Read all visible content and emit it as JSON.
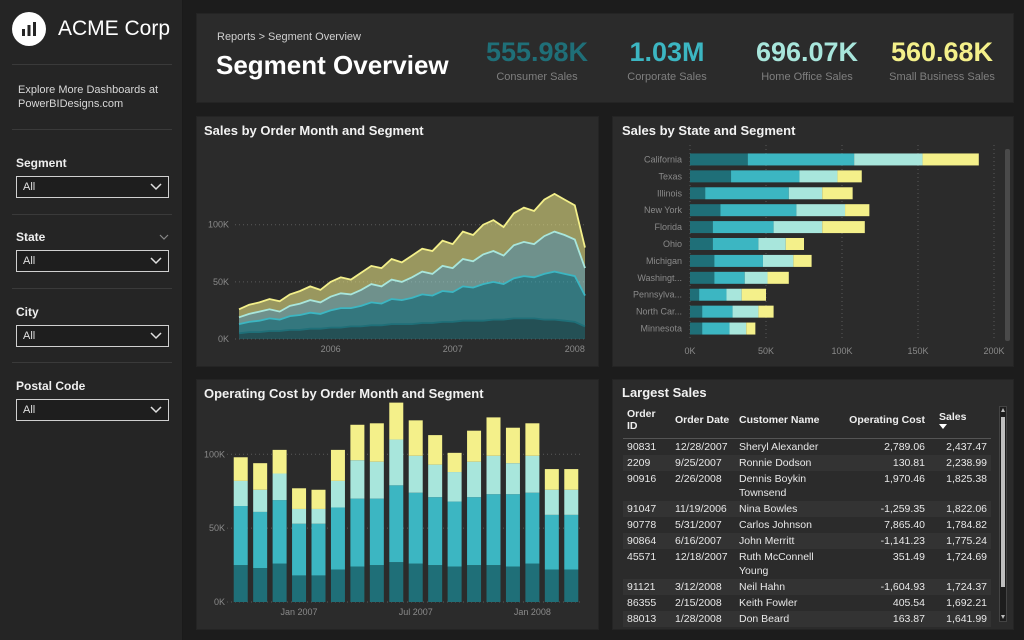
{
  "app": {
    "name": "ACME Corp",
    "explore_text": "Explore More Dashboards at PowerBIDesigns.com"
  },
  "slicers": [
    {
      "label": "Segment",
      "value": "All"
    },
    {
      "label": "State",
      "value": "All"
    },
    {
      "label": "City",
      "value": "All"
    },
    {
      "label": "Postal Code",
      "value": "All"
    }
  ],
  "header": {
    "breadcrumb": "Reports > Segment Overview",
    "title": "Segment Overview"
  },
  "kpis": [
    {
      "value": "555.98K",
      "label": "Consumer Sales",
      "color": "#1f6f78"
    },
    {
      "value": "1.03M",
      "label": "Corporate Sales",
      "color": "#3cb6c2"
    },
    {
      "value": "696.07K",
      "label": "Home Office Sales",
      "color": "#a8e6dc"
    },
    {
      "value": "560.68K",
      "label": "Small Business Sales",
      "color": "#f4f08a"
    }
  ],
  "colors": {
    "consumer": "#1f6f78",
    "corporate": "#3cb6c2",
    "home_office": "#a8e6dc",
    "small_business": "#f4f08a"
  },
  "chart_data": [
    {
      "type": "area",
      "title": "Sales by Order Month and Segment",
      "stacked": true,
      "ylim": [
        0,
        175
      ],
      "yticks": [
        "0K",
        "50K",
        "100K"
      ],
      "ytick_values": [
        0,
        50,
        100
      ],
      "xticks": [
        "2006",
        "2007",
        "2008"
      ],
      "xtick_positions": [
        9,
        21,
        33
      ],
      "series": [
        {
          "name": "Consumer",
          "values": [
            5,
            6,
            6,
            7,
            7,
            8,
            8,
            9,
            9,
            10,
            10,
            11,
            11,
            12,
            12,
            13,
            13,
            13,
            14,
            14,
            15,
            15,
            16,
            16,
            16,
            17,
            17,
            18,
            18,
            18,
            17,
            17,
            16,
            15,
            11
          ]
        },
        {
          "name": "Corporate",
          "values": [
            8,
            9,
            10,
            11,
            10,
            12,
            13,
            14,
            13,
            15,
            17,
            16,
            18,
            20,
            19,
            22,
            21,
            23,
            25,
            24,
            27,
            26,
            30,
            29,
            32,
            33,
            31,
            35,
            37,
            36,
            40,
            42,
            41,
            40,
            27
          ]
        },
        {
          "name": "Home Office",
          "values": [
            6,
            7,
            8,
            8,
            7,
            9,
            10,
            11,
            10,
            12,
            13,
            12,
            14,
            16,
            15,
            17,
            16,
            18,
            20,
            19,
            22,
            21,
            24,
            23,
            26,
            27,
            25,
            29,
            30,
            29,
            33,
            35,
            34,
            32,
            24
          ]
        },
        {
          "name": "Small Business",
          "values": [
            7,
            8,
            8,
            9,
            9,
            10,
            11,
            12,
            11,
            13,
            14,
            13,
            15,
            16,
            16,
            18,
            17,
            19,
            20,
            20,
            22,
            21,
            24,
            23,
            26,
            27,
            25,
            28,
            30,
            29,
            32,
            33,
            31,
            30,
            18
          ]
        }
      ]
    },
    {
      "type": "bar",
      "orientation": "horizontal",
      "stacked": true,
      "title": "Sales by State and Segment",
      "categories": [
        "California",
        "Texas",
        "Illinois",
        "New York",
        "Florida",
        "Ohio",
        "Michigan",
        "Washingt...",
        "Pennsylva...",
        "North Car...",
        "Minnesota"
      ],
      "xlim": [
        0,
        200
      ],
      "xticks": [
        "0K",
        "50K",
        "100K",
        "150K",
        "200K"
      ],
      "xtick_values": [
        0,
        50,
        100,
        150,
        200
      ],
      "series": [
        {
          "name": "Consumer",
          "values": [
            38,
            27,
            10,
            20,
            15,
            15,
            16,
            16,
            6,
            8,
            8
          ]
        },
        {
          "name": "Corporate",
          "values": [
            70,
            45,
            55,
            50,
            40,
            30,
            32,
            20,
            18,
            20,
            18
          ]
        },
        {
          "name": "Home Office",
          "values": [
            45,
            25,
            22,
            32,
            32,
            18,
            20,
            15,
            10,
            17,
            11
          ]
        },
        {
          "name": "Small Business",
          "values": [
            37,
            16,
            20,
            16,
            28,
            12,
            12,
            14,
            16,
            10,
            6
          ]
        }
      ]
    },
    {
      "type": "bar",
      "stacked": true,
      "title": "Operating Cost by Order Month and Segment",
      "ylim": [
        0,
        130
      ],
      "yticks": [
        "0K",
        "50K",
        "100K"
      ],
      "ytick_values": [
        0,
        50,
        100
      ],
      "xticks": [
        "Jan 2007",
        "Jul 2007",
        "Jan 2008"
      ],
      "xtick_positions": [
        3,
        9,
        15
      ],
      "series": [
        {
          "name": "Consumer",
          "values": [
            25,
            23,
            26,
            18,
            18,
            22,
            24,
            25,
            27,
            26,
            25,
            24,
            25,
            25,
            24,
            26,
            22,
            22
          ]
        },
        {
          "name": "Corporate",
          "values": [
            40,
            38,
            43,
            35,
            35,
            42,
            46,
            45,
            52,
            48,
            46,
            44,
            46,
            48,
            49,
            48,
            37,
            37
          ]
        },
        {
          "name": "Home Office",
          "values": [
            17,
            15,
            18,
            10,
            10,
            18,
            26,
            25,
            31,
            25,
            22,
            20,
            24,
            26,
            21,
            25,
            17,
            17
          ]
        },
        {
          "name": "Small Business",
          "values": [
            16,
            18,
            16,
            14,
            13,
            21,
            24,
            26,
            25,
            24,
            20,
            13,
            21,
            26,
            24,
            22,
            14,
            14
          ]
        }
      ]
    }
  ],
  "largest_sales": {
    "title": "Largest Sales",
    "columns": [
      "Order ID",
      "Order Date",
      "Customer Name",
      "Operating Cost",
      "Sales"
    ],
    "rows": [
      [
        "90831",
        "12/28/2007",
        "Sheryl Alexander",
        "2,789.06",
        "2,437.47"
      ],
      [
        "2209",
        "9/25/2007",
        "Ronnie Dodson",
        "130.81",
        "2,238.99"
      ],
      [
        "90916",
        "2/26/2008",
        "Dennis Boykin Townsend",
        "1,970.46",
        "1,825.38"
      ],
      [
        "91047",
        "11/19/2006",
        "Nina Bowles",
        "-1,259.35",
        "1,822.06"
      ],
      [
        "90778",
        "5/31/2007",
        "Carlos Johnson",
        "7,865.40",
        "1,784.82"
      ],
      [
        "90864",
        "6/16/2007",
        "John Merritt",
        "-1,141.23",
        "1,775.24"
      ],
      [
        "45571",
        "12/18/2007",
        "Ruth McConnell Young",
        "351.49",
        "1,724.69"
      ],
      [
        "91121",
        "3/12/2008",
        "Neil Hahn",
        "-1,604.93",
        "1,724.37"
      ],
      [
        "86355",
        "2/15/2008",
        "Keith Fowler",
        "405.54",
        "1,692.21"
      ],
      [
        "88013",
        "1/28/2008",
        "Don Beard",
        "163.87",
        "1,641.99"
      ]
    ]
  }
}
